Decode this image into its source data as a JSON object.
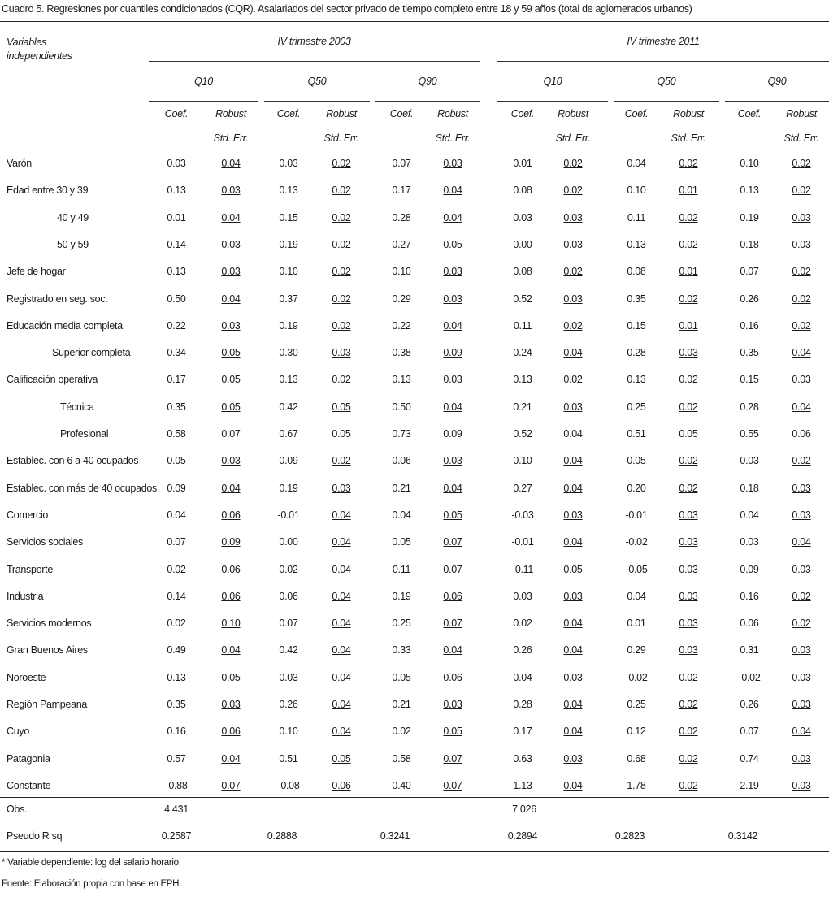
{
  "title": "Cuadro 5. Regresiones por cuantiles condicionados (CQR). Asalariados del sector privado de tiempo completo entre 18 y 59 años (total de aglomerados urbanos)",
  "header": {
    "variables_label": [
      "Variables",
      "independientes"
    ],
    "periods": [
      "IV trimestre 2003",
      "IV trimestre 2011"
    ],
    "quantiles": [
      "Q10",
      "Q50",
      "Q90",
      "Q10",
      "Q50",
      "Q90"
    ],
    "coef_label": "Coef.",
    "robust_label": "Robust",
    "stderr_label": "Std. Err."
  },
  "rows": [
    {
      "label": "Varón",
      "indent": 0,
      "values": [
        "0.03",
        "0.04",
        "0.03",
        "0.02",
        "0.07",
        "0.03",
        "0.01",
        "0.02",
        "0.04",
        "0.02",
        "0.10",
        "0.02"
      ],
      "se_underlined": true
    },
    {
      "label": "Edad entre 30 y 39",
      "indent": 0,
      "values": [
        "0.13",
        "0.03",
        "0.13",
        "0.02",
        "0.17",
        "0.04",
        "0.08",
        "0.02",
        "0.10",
        "0.01",
        "0.13",
        "0.02"
      ],
      "se_underlined": true
    },
    {
      "label": "40 y 49",
      "indent": 2,
      "values": [
        "0.01",
        "0.04",
        "0.15",
        "0.02",
        "0.28",
        "0.04",
        "0.03",
        "0.03",
        "0.11",
        "0.02",
        "0.19",
        "0.03"
      ],
      "se_underlined": true
    },
    {
      "label": "50 y 59",
      "indent": 2,
      "values": [
        "0.14",
        "0.03",
        "0.19",
        "0.02",
        "0.27",
        "0.05",
        "0.00",
        "0.03",
        "0.13",
        "0.02",
        "0.18",
        "0.03"
      ],
      "se_underlined": true
    },
    {
      "label": "Jefe de hogar",
      "indent": 0,
      "values": [
        "0.13",
        "0.03",
        "0.10",
        "0.02",
        "0.10",
        "0.03",
        "0.08",
        "0.02",
        "0.08",
        "0.01",
        "0.07",
        "0.02"
      ],
      "se_underlined": true
    },
    {
      "label": "Registrado en seg. soc.",
      "indent": 0,
      "values": [
        "0.50",
        "0.04",
        "0.37",
        "0.02",
        "0.29",
        "0.03",
        "0.52",
        "0.03",
        "0.35",
        "0.02",
        "0.26",
        "0.02"
      ],
      "se_underlined": true
    },
    {
      "label": "Educación media completa",
      "indent": 0,
      "values": [
        "0.22",
        "0.03",
        "0.19",
        "0.02",
        "0.22",
        "0.04",
        "0.11",
        "0.02",
        "0.15",
        "0.01",
        "0.16",
        "0.02"
      ],
      "se_underlined": true
    },
    {
      "label": "Superior completa",
      "indent": 1,
      "values": [
        "0.34",
        "0.05",
        "0.30",
        "0.03",
        "0.38",
        "0.09",
        "0.24",
        "0.04",
        "0.28",
        "0.03",
        "0.35",
        "0.04"
      ],
      "se_underlined": true
    },
    {
      "label": "Calificación operativa",
      "indent": 0,
      "values": [
        "0.17",
        "0.05",
        "0.13",
        "0.02",
        "0.13",
        "0.03",
        "0.13",
        "0.02",
        "0.13",
        "0.02",
        "0.15",
        "0.03"
      ],
      "se_underlined": true
    },
    {
      "label": "Técnica",
      "indent": 3,
      "values": [
        "0.35",
        "0.05",
        "0.42",
        "0.05",
        "0.50",
        "0.04",
        "0.21",
        "0.03",
        "0.25",
        "0.02",
        "0.28",
        "0.04"
      ],
      "se_underlined": true
    },
    {
      "label": "Profesional",
      "indent": 3,
      "values": [
        "0.58",
        "0.07",
        "0.67",
        "0.05",
        "0.73",
        "0.09",
        "0.52",
        "0.04",
        "0.51",
        "0.05",
        "0.55",
        "0.06"
      ],
      "se_underlined": false
    },
    {
      "label": "Establec. con 6 a 40 ocupados",
      "indent": 0,
      "values": [
        "0.05",
        "0.03",
        "0.09",
        "0.02",
        "0.06",
        "0.03",
        "0.10",
        "0.04",
        "0.05",
        "0.02",
        "0.03",
        "0.02"
      ],
      "se_underlined": true
    },
    {
      "label": "Establec. con más de 40 ocupados",
      "indent": 0,
      "values": [
        "0.09",
        "0.04",
        "0.19",
        "0.03",
        "0.21",
        "0.04",
        "0.27",
        "0.04",
        "0.20",
        "0.02",
        "0.18",
        "0.03"
      ],
      "se_underlined": true
    },
    {
      "label": "Comercio",
      "indent": 0,
      "values": [
        "0.04",
        "0.06",
        "-0.01",
        "0.04",
        "0.04",
        "0.05",
        "-0.03",
        "0.03",
        "-0.01",
        "0.03",
        "0.04",
        "0.03"
      ],
      "se_underlined": true
    },
    {
      "label": "Servicios sociales",
      "indent": 0,
      "values": [
        "0.07",
        "0.09",
        "0.00",
        "0.04",
        "0.05",
        "0.07",
        "-0.01",
        "0.04",
        "-0.02",
        "0.03",
        "0.03",
        "0.04"
      ],
      "se_underlined": true
    },
    {
      "label": "Transporte",
      "indent": 0,
      "values": [
        "0.02",
        "0.06",
        "0.02",
        "0.04",
        "0.11",
        "0.07",
        "-0.11",
        "0.05",
        "-0.05",
        "0.03",
        "0.09",
        "0.03"
      ],
      "se_underlined": true
    },
    {
      "label": "Industria",
      "indent": 0,
      "values": [
        "0.14",
        "0.06",
        "0.06",
        "0.04",
        "0.19",
        "0.06",
        "0.03",
        "0.03",
        "0.04",
        "0.03",
        "0.16",
        "0.02"
      ],
      "se_underlined": true
    },
    {
      "label": "Servicios modernos",
      "indent": 0,
      "values": [
        "0.02",
        "0.10",
        "0.07",
        "0.04",
        "0.25",
        "0.07",
        "0.02",
        "0.04",
        "0.01",
        "0.03",
        "0.06",
        "0.02"
      ],
      "se_underlined": true
    },
    {
      "label": "Gran Buenos Aires",
      "indent": 0,
      "values": [
        "0.49",
        "0.04",
        "0.42",
        "0.04",
        "0.33",
        "0.04",
        "0.26",
        "0.04",
        "0.29",
        "0.03",
        "0.31",
        "0.03"
      ],
      "se_underlined": true
    },
    {
      "label": "Noroeste",
      "indent": 0,
      "values": [
        "0.13",
        "0.05",
        "0.03",
        "0.04",
        "0.05",
        "0.06",
        "0.04",
        "0.03",
        "-0.02",
        "0.02",
        "-0.02",
        "0.03"
      ],
      "se_underlined": true
    },
    {
      "label": "Región Pampeana",
      "indent": 0,
      "values": [
        "0.35",
        "0.03",
        "0.26",
        "0.04",
        "0.21",
        "0.03",
        "0.28",
        "0.04",
        "0.25",
        "0.02",
        "0.26",
        "0.03"
      ],
      "se_underlined": true
    },
    {
      "label": "Cuyo",
      "indent": 0,
      "values": [
        "0.16",
        "0.06",
        "0.10",
        "0.04",
        "0.02",
        "0.05",
        "0.17",
        "0.04",
        "0.12",
        "0.02",
        "0.07",
        "0.04"
      ],
      "se_underlined": true
    },
    {
      "label": "Patagonia",
      "indent": 0,
      "values": [
        "0.57",
        "0.04",
        "0.51",
        "0.05",
        "0.58",
        "0.07",
        "0.63",
        "0.03",
        "0.68",
        "0.02",
        "0.74",
        "0.03"
      ],
      "se_underlined": true
    },
    {
      "label": "Constante",
      "indent": 0,
      "values": [
        "-0.88",
        "0.07",
        "-0.08",
        "0.06",
        "0.40",
        "0.07",
        "1.13",
        "0.04",
        "1.78",
        "0.02",
        "2.19",
        "0.03"
      ],
      "se_underlined": true
    }
  ],
  "obs": {
    "label": "Obs.",
    "values": [
      "4 431",
      "7 026"
    ]
  },
  "pseudo_r2": {
    "label": "Pseudo R sq",
    "values": [
      "0.2587",
      "0.2888",
      "0.3241",
      "0.2894",
      "0.2823",
      "0.3142"
    ]
  },
  "footnotes": [
    "* Variable dependiente: log del salario horario.",
    "Fuente: Elaboración propia con base en EPH."
  ]
}
